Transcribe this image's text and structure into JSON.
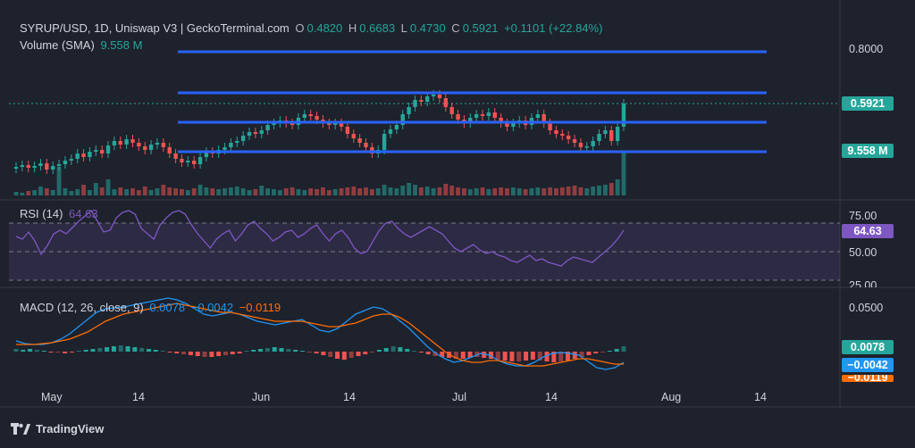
{
  "header": {
    "symbol": "SYRUP/USD, 1D, Uniswap V3 | GeckoTerminal.com",
    "o_label": "O",
    "o_value": "0.4820",
    "h_label": "H",
    "h_value": "0.6683",
    "l_label": "L",
    "l_value": "0.4730",
    "c_label": "C",
    "c_value": "0.5921",
    "change": "+0.1101 (+22.84%)",
    "volume_label": "Volume (SMA)",
    "volume_value": "9.558 M"
  },
  "rsi_header": {
    "label": "RSI (14)",
    "value": "64.63"
  },
  "macd_header": {
    "label": "MACD (12, 26, close, 9)",
    "v1": "0.0078",
    "v2": "−0.0042",
    "v3": "−0.0119"
  },
  "price_axis": {
    "tick": "0.8000",
    "last_price": "0.5921",
    "volume_badge": "9.558 M"
  },
  "rsi_axis": {
    "ticks": [
      "75.00",
      "50.00",
      "25.00"
    ],
    "last": "64.63"
  },
  "macd_axis": {
    "tick": "0.0500",
    "hist": "0.0078",
    "macd": "−0.0042",
    "signal": "−0.0119"
  },
  "x_axis": [
    "May",
    "14",
    "Jun",
    "14",
    "Jul",
    "14",
    "Aug",
    "14"
  ],
  "brand": "TradingView",
  "colors": {
    "up": "#26a69a",
    "down": "#ef5350",
    "level_line": "#2962ff",
    "rsi": "#7e57c2",
    "macd": "#2196f3",
    "signal": "#ff6d00",
    "background": "#1e222d"
  },
  "chart_data": {
    "type": "candlestick",
    "price_ticks": [
      0.8
    ],
    "horizontal_levels_drawn": 4,
    "volume_sma": "9.558M",
    "rsi_levels": [
      75,
      50,
      25
    ],
    "rsi_last": 64.63,
    "macd_params": [
      12,
      26,
      9
    ],
    "macd_last": {
      "histogram": 0.0078,
      "macd": -0.0042,
      "signal": -0.0119
    }
  }
}
